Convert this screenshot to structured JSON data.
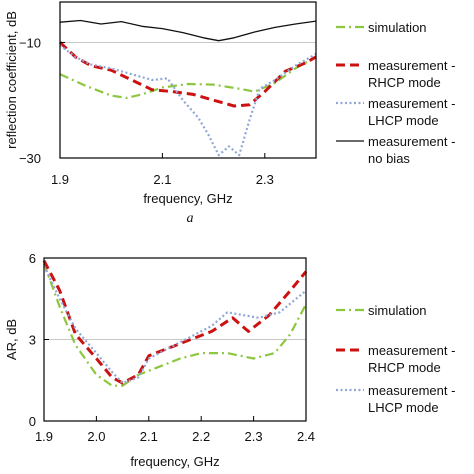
{
  "colors": {
    "simulation": "#8dc63f",
    "rhcp": "#cc1111",
    "lhcp": "#8fa6d6",
    "nobias": "#111111",
    "gridline": "#c8c8c8",
    "axis": "#000000"
  },
  "chart_data": [
    {
      "type": "line",
      "panel_label": "a",
      "xlabel": "frequency, GHz",
      "ylabel": "reflection coefficient, dB",
      "xlim": [
        1.9,
        2.4
      ],
      "ylim": [
        -30,
        -3
      ],
      "x_ticks": [
        1.9,
        2.1,
        2.3
      ],
      "x_tick_labels": [
        "1.9",
        "2.1",
        "2.3"
      ],
      "y_ticks": [
        -10,
        -30
      ],
      "y_tick_labels": [
        "−10",
        "−30"
      ],
      "reference_line": -10,
      "legend_position": "right",
      "series": [
        {
          "name": "simulation",
          "style": "dash-dot",
          "x": [
            1.9,
            1.95,
            2.0,
            2.03,
            2.06,
            2.1,
            2.15,
            2.2,
            2.25,
            2.28,
            2.32,
            2.36,
            2.4
          ],
          "y": [
            -15.5,
            -17.5,
            -19.2,
            -19.6,
            -19.0,
            -17.8,
            -17.2,
            -17.3,
            -18.0,
            -18.5,
            -17.0,
            -14.5,
            -12.5
          ]
        },
        {
          "name": "measurement - RHCP mode",
          "style": "dashed",
          "x": [
            1.9,
            1.93,
            1.96,
            2.0,
            2.04,
            2.08,
            2.12,
            2.16,
            2.2,
            2.24,
            2.27,
            2.3,
            2.34,
            2.38,
            2.4
          ],
          "y": [
            -10.0,
            -12.5,
            -14.0,
            -14.8,
            -16.5,
            -18.2,
            -18.5,
            -19.0,
            -20.0,
            -21.0,
            -20.8,
            -18.5,
            -15.0,
            -13.5,
            -12.5
          ]
        },
        {
          "name": "measurement - LHCP mode",
          "style": "dotted",
          "x": [
            1.9,
            1.93,
            1.96,
            2.0,
            2.04,
            2.08,
            2.11,
            2.14,
            2.17,
            2.19,
            2.21,
            2.23,
            2.25,
            2.27,
            2.29,
            2.32,
            2.36,
            2.4
          ],
          "y": [
            -10.5,
            -12.5,
            -13.8,
            -14.5,
            -15.5,
            -16.5,
            -16.2,
            -20.0,
            -23.0,
            -26.0,
            -29.5,
            -28.0,
            -29.5,
            -23.5,
            -18.0,
            -16.5,
            -14.0,
            -12.0
          ]
        },
        {
          "name": "measurement - no bias",
          "style": "solid",
          "x": [
            1.9,
            1.94,
            1.98,
            2.02,
            2.06,
            2.1,
            2.14,
            2.18,
            2.21,
            2.24,
            2.28,
            2.32,
            2.36,
            2.4
          ],
          "y": [
            -6.5,
            -6.2,
            -6.8,
            -6.4,
            -7.2,
            -7.6,
            -8.3,
            -9.2,
            -9.7,
            -9.2,
            -8.2,
            -7.4,
            -6.8,
            -6.3
          ]
        }
      ]
    },
    {
      "type": "line",
      "xlabel": "frequency, GHz",
      "ylabel": "AR, dB",
      "xlim": [
        1.9,
        2.4
      ],
      "ylim": [
        0,
        6
      ],
      "x_ticks": [
        1.9,
        2.0,
        2.1,
        2.2,
        2.3,
        2.4
      ],
      "x_tick_labels": [
        "1.9",
        "2.0",
        "2.1",
        "2.2",
        "2.3",
        "2.4"
      ],
      "y_ticks": [
        0,
        3,
        6
      ],
      "y_tick_labels": [
        "0",
        "3",
        "6"
      ],
      "reference_line": 3,
      "legend_position": "right",
      "series": [
        {
          "name": "simulation",
          "style": "dash-dot",
          "x": [
            1.9,
            1.93,
            1.96,
            2.0,
            2.03,
            2.05,
            2.08,
            2.12,
            2.16,
            2.2,
            2.25,
            2.3,
            2.34,
            2.37,
            2.4
          ],
          "y": [
            5.8,
            4.2,
            2.8,
            1.7,
            1.3,
            1.3,
            1.7,
            2.0,
            2.3,
            2.5,
            2.5,
            2.3,
            2.5,
            3.2,
            4.3
          ]
        },
        {
          "name": "measurement - RHCP mode",
          "style": "dashed",
          "x": [
            1.9,
            1.93,
            1.96,
            2.0,
            2.03,
            2.05,
            2.08,
            2.1,
            2.14,
            2.18,
            2.22,
            2.26,
            2.29,
            2.33,
            2.37,
            2.4
          ],
          "y": [
            5.9,
            4.8,
            3.2,
            2.3,
            1.6,
            1.4,
            1.7,
            2.4,
            2.7,
            3.0,
            3.3,
            3.8,
            3.3,
            3.9,
            4.8,
            5.5
          ]
        },
        {
          "name": "measurement - LHCP mode",
          "style": "dotted",
          "x": [
            1.9,
            1.93,
            1.96,
            2.0,
            2.03,
            2.05,
            2.08,
            2.1,
            2.14,
            2.18,
            2.22,
            2.25,
            2.28,
            2.31,
            2.35,
            2.4
          ],
          "y": [
            5.7,
            4.5,
            3.4,
            2.5,
            1.8,
            1.4,
            1.6,
            2.3,
            2.7,
            3.1,
            3.5,
            4.0,
            3.9,
            3.8,
            4.0,
            4.8
          ]
        }
      ]
    }
  ]
}
